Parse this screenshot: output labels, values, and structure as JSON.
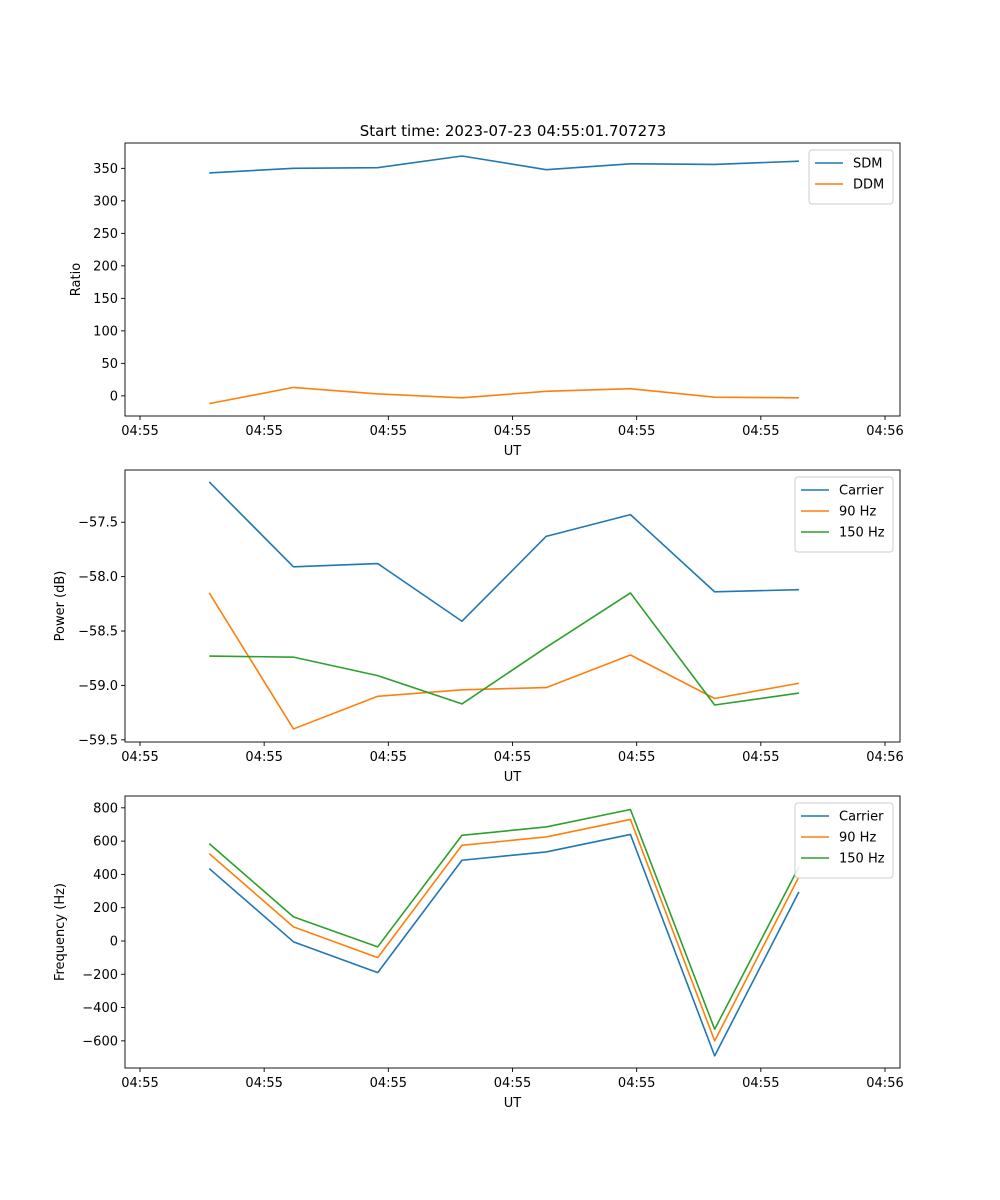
{
  "figure_title": "Start time: 2023-07-23 04:55:01.707273",
  "chart_data": [
    {
      "type": "line",
      "title": "Start time: 2023-07-23 04:55:01.707273",
      "xlabel": "UT",
      "ylabel": "Ratio",
      "x_tick_labels": [
        "04:55",
        "04:55",
        "04:55",
        "04:55",
        "04:55",
        "04:55",
        "04:56"
      ],
      "y_ticks": [
        0,
        50,
        100,
        150,
        200,
        250,
        300,
        350
      ],
      "y_tick_labels": [
        "0",
        "50",
        "100",
        "150",
        "200",
        "250",
        "300",
        "350"
      ],
      "ylim": [
        -31,
        389
      ],
      "xlim": [
        -0.5,
        8.7
      ],
      "legend": "top-right",
      "x": [
        0.5,
        1.5,
        2.5,
        3.5,
        4.5,
        5.5,
        6.5,
        7.5
      ],
      "series": [
        {
          "name": "SDM",
          "color": "#1f77b4",
          "values": [
            343,
            350,
            351,
            369,
            348,
            357,
            356,
            361
          ]
        },
        {
          "name": "DDM",
          "color": "#ff7f0e",
          "values": [
            -12,
            13,
            3,
            -3,
            7,
            11,
            -2,
            -3
          ]
        }
      ]
    },
    {
      "type": "line",
      "title": "",
      "xlabel": "UT",
      "ylabel": "Power (dB)",
      "x_tick_labels": [
        "04:55",
        "04:55",
        "04:55",
        "04:55",
        "04:55",
        "04:55",
        "04:56"
      ],
      "y_ticks": [
        -59.5,
        -59.0,
        -58.5,
        -58.0,
        -57.5
      ],
      "y_tick_labels": [
        "−59.5",
        "−59.0",
        "−58.5",
        "−58.0",
        "−57.5"
      ],
      "ylim": [
        -59.52,
        -57.02
      ],
      "xlim": [
        -0.5,
        8.7
      ],
      "legend": "top-right",
      "x": [
        0.5,
        1.5,
        2.5,
        3.5,
        4.5,
        5.5,
        6.5,
        7.5
      ],
      "series": [
        {
          "name": "Carrier",
          "color": "#1f77b4",
          "values": [
            -57.13,
            -57.91,
            -57.88,
            -58.41,
            -57.63,
            -57.43,
            -58.14,
            -58.12
          ]
        },
        {
          "name": "90 Hz",
          "color": "#ff7f0e",
          "values": [
            -58.15,
            -59.4,
            -59.1,
            -59.04,
            -59.02,
            -58.72,
            -59.12,
            -58.98
          ]
        },
        {
          "name": "150 Hz",
          "color": "#2ca02c",
          "values": [
            -58.73,
            -58.74,
            -58.91,
            -59.17,
            -58.65,
            -58.15,
            -59.18,
            -59.07
          ]
        }
      ]
    },
    {
      "type": "line",
      "title": "",
      "xlabel": "UT",
      "ylabel": "Frequency (Hz)",
      "x_tick_labels": [
        "04:55",
        "04:55",
        "04:55",
        "04:55",
        "04:55",
        "04:55",
        "04:56"
      ],
      "y_ticks": [
        -600,
        -400,
        -200,
        0,
        200,
        400,
        600,
        800
      ],
      "y_tick_labels": [
        "−600",
        "−400",
        "−200",
        "0",
        "200",
        "400",
        "600",
        "800"
      ],
      "ylim": [
        -763,
        871
      ],
      "xlim": [
        -0.5,
        8.7
      ],
      "legend": "top-right",
      "x": [
        0.5,
        1.5,
        2.5,
        3.5,
        4.5,
        5.5,
        6.5,
        7.5
      ],
      "series": [
        {
          "name": "Carrier",
          "color": "#1f77b4",
          "values": [
            435,
            -5,
            -190,
            485,
            535,
            640,
            -690,
            295
          ]
        },
        {
          "name": "90 Hz",
          "color": "#ff7f0e",
          "values": [
            525,
            85,
            -100,
            575,
            625,
            730,
            -600,
            385
          ]
        },
        {
          "name": "150 Hz",
          "color": "#2ca02c",
          "values": [
            585,
            145,
            -35,
            635,
            685,
            790,
            -530,
            445
          ]
        }
      ]
    }
  ]
}
